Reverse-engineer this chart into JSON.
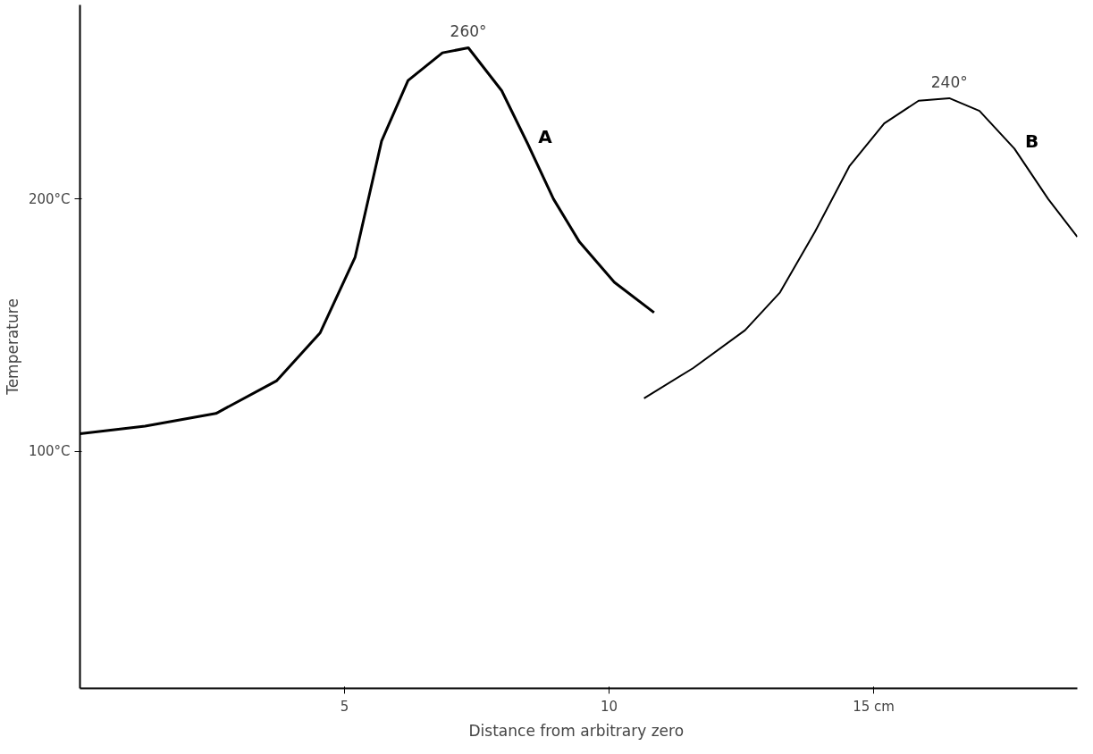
{
  "chart_data": {
    "type": "line",
    "xlabel": "Distance  from arbitrary zero",
    "ylabel": "Temperature",
    "xlim": [
      0,
      18.85
    ],
    "ylim": [
      6,
      277
    ],
    "xticks": [
      5,
      10,
      {
        "value": 15,
        "label": "15 cm"
      }
    ],
    "yticks": [
      {
        "value": 100,
        "label": "100°C"
      },
      {
        "value": 200,
        "label": "200°C"
      }
    ],
    "grid": false,
    "marker": "none",
    "line_style": "solid",
    "series": [
      {
        "name": "A",
        "color": "#000000",
        "x": [
          0,
          1.23,
          2.57,
          3.72,
          4.54,
          5.2,
          5.7,
          6.2,
          6.85,
          7.34,
          7.97,
          8.46,
          8.95,
          9.44,
          10.1,
          10.85
        ],
        "values": [
          107,
          110,
          115,
          128,
          147,
          177,
          223,
          247,
          258,
          260,
          243,
          222,
          200,
          183,
          167,
          155
        ]
      },
      {
        "name": "B",
        "color": "#000000",
        "x": [
          10.66,
          11.59,
          12.57,
          13.23,
          13.89,
          14.54,
          15.2,
          15.85,
          16.43,
          17.0,
          17.66,
          18.3,
          18.85
        ],
        "values": [
          121,
          133,
          148,
          163,
          187,
          213,
          230,
          239,
          240,
          235,
          220,
          200,
          185
        ]
      }
    ],
    "annotations": [
      {
        "text": "260°",
        "x": 7.34,
        "y": 260
      },
      {
        "text": "240°",
        "x": 16.43,
        "y": 240
      }
    ]
  }
}
